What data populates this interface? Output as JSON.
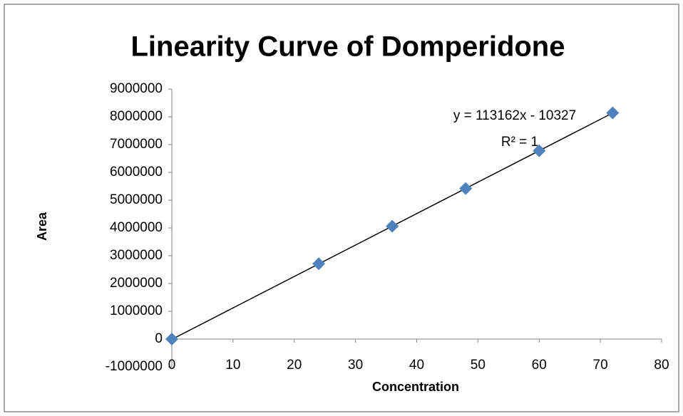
{
  "chart_data": {
    "type": "scatter",
    "title": "Linearity Curve  of Domperidone",
    "x_label": "Concentration",
    "y_label": "Area",
    "series": [
      {
        "name": "Area",
        "color": "#4f81bd",
        "x": [
          0,
          24,
          36,
          48,
          60,
          72
        ],
        "values": [
          0,
          2710000,
          4060000,
          5420000,
          6780000,
          8140000
        ]
      }
    ],
    "trendline": {
      "color": "#000000",
      "x": [
        0,
        72
      ],
      "values": [
        -10327,
        8137337
      ]
    },
    "annotations": [
      "y = 113162x - 10327",
      "R² = 1"
    ],
    "xlim": [
      0,
      80
    ],
    "xticks": [
      0,
      10,
      20,
      30,
      40,
      50,
      60,
      70,
      80
    ],
    "ylim": [
      -1000000,
      9000000
    ],
    "yticks": [
      -1000000,
      0,
      1000000,
      2000000,
      3000000,
      4000000,
      5000000,
      6000000,
      7000000,
      8000000,
      9000000
    ],
    "grid": false
  }
}
